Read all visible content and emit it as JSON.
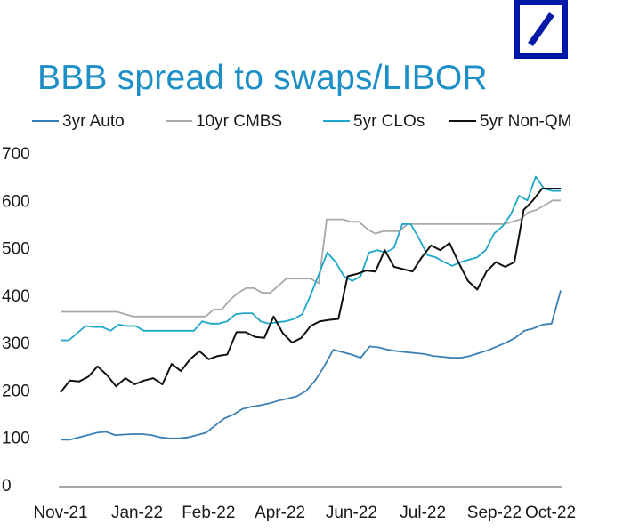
{
  "logo": {
    "name": "deutsche-bank-logo",
    "color": "#0018a8"
  },
  "chart_data": {
    "type": "line",
    "title": "BBB spread to swaps/LIBOR",
    "xlabel": "",
    "ylabel": "",
    "ylim": [
      0,
      700
    ],
    "yticks": [
      "0",
      "100",
      "200",
      "300",
      "400",
      "500",
      "600",
      "700"
    ],
    "x_tick_labels": [
      "Nov-21",
      "Jan-22",
      "Feb-22",
      "Apr-22",
      "Jun-22",
      "Jul-22",
      "Sep-22",
      "Oct-22"
    ],
    "x_range": [
      0,
      49
    ],
    "x_tick_positions": [
      0,
      7.5,
      14.5,
      21.5,
      28.5,
      35.5,
      42.5,
      48
    ],
    "grid": false,
    "legend_position": "top",
    "series": [
      {
        "name": "3yr Auto",
        "color": "#3a7fb4",
        "values": [
          95,
          95,
          100,
          105,
          110,
          112,
          105,
          106,
          107,
          107,
          105,
          100,
          98,
          98,
          100,
          105,
          110,
          125,
          140,
          148,
          160,
          165,
          168,
          172,
          178,
          182,
          187,
          198,
          220,
          250,
          285,
          280,
          275,
          268,
          292,
          290,
          285,
          282,
          280,
          278,
          276,
          272,
          270,
          268,
          268,
          272,
          278,
          284,
          292,
          300,
          310,
          325,
          330,
          338,
          340,
          410
        ]
      },
      {
        "name": "10yr CMBS",
        "color": "#a9a9a9",
        "values": [
          365,
          365,
          365,
          365,
          365,
          365,
          365,
          365,
          360,
          355,
          355,
          355,
          355,
          355,
          355,
          355,
          355,
          355,
          355,
          370,
          370,
          390,
          405,
          415,
          415,
          405,
          405,
          420,
          435,
          435,
          435,
          435,
          425,
          560,
          560,
          560,
          555,
          555,
          540,
          530,
          535,
          535,
          535,
          550,
          550,
          550,
          550,
          550,
          550,
          550,
          550,
          550,
          550,
          550,
          550,
          550,
          555,
          560,
          575,
          580,
          590,
          600,
          600
        ]
      },
      {
        "name": "5yr CLOs",
        "color": "#1fa7c9",
        "values": [
          305,
          305,
          320,
          335,
          333,
          333,
          325,
          338,
          335,
          335,
          325,
          325,
          325,
          325,
          325,
          325,
          325,
          345,
          340,
          340,
          345,
          360,
          362,
          362,
          345,
          340,
          343,
          345,
          350,
          360,
          400,
          445,
          490,
          470,
          440,
          430,
          440,
          490,
          495,
          490,
          500,
          550,
          550,
          520,
          485,
          480,
          470,
          462,
          470,
          475,
          480,
          495,
          530,
          545,
          570,
          610,
          600,
          650,
          625,
          620,
          620
        ]
      },
      {
        "name": "5yr Non-QM",
        "color": "#111111",
        "values": [
          195,
          220,
          218,
          228,
          250,
          232,
          208,
          225,
          212,
          220,
          225,
          212,
          255,
          240,
          265,
          282,
          265,
          272,
          275,
          322,
          322,
          312,
          310,
          355,
          320,
          300,
          310,
          335,
          345,
          348,
          350,
          440,
          445,
          452,
          450,
          495,
          460,
          455,
          450,
          480,
          505,
          495,
          510,
          468,
          430,
          412,
          450,
          470,
          460,
          470,
          580,
          600,
          625,
          625,
          625
        ]
      }
    ]
  }
}
